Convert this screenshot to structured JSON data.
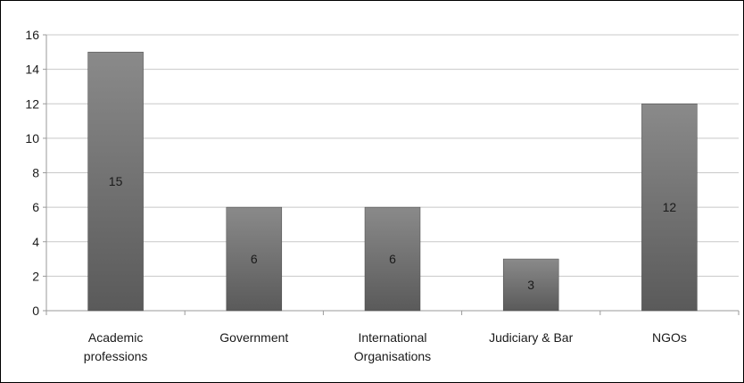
{
  "chart_data": {
    "type": "bar",
    "title": "",
    "xlabel": "",
    "ylabel": "",
    "categories": [
      [
        "Academic",
        "professions"
      ],
      [
        "Government"
      ],
      [
        "International",
        "Organisations"
      ],
      [
        "Judiciary & Bar"
      ],
      [
        "NGOs"
      ]
    ],
    "values": [
      15,
      6,
      6,
      3,
      12
    ],
    "data_labels": [
      "15",
      "6",
      "6",
      "3",
      "12"
    ],
    "ylim": [
      0,
      16
    ],
    "yticks": [
      0,
      2,
      4,
      6,
      8,
      10,
      12,
      14,
      16
    ],
    "grid": true,
    "legend": "none",
    "colors": {
      "bar_top": "#8a8a8a",
      "bar_bottom": "#5a5a5a",
      "bar_edge": "#4a4a4a",
      "grid": "#c8c8c8",
      "axis": "#9a9a9a"
    }
  }
}
